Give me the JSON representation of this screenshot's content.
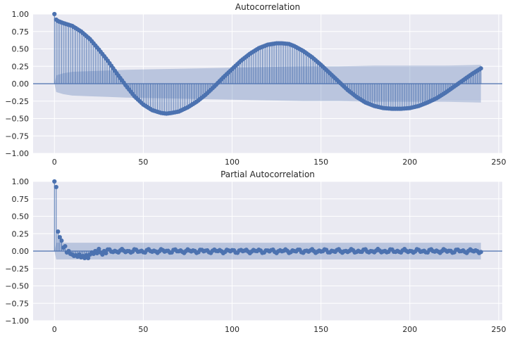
{
  "chart_data": [
    {
      "type": "stem",
      "title": "Autocorrelation",
      "xlabel": "",
      "ylabel": "",
      "xlim": [
        -12,
        252
      ],
      "ylim": [
        -1.0,
        1.0
      ],
      "xticks": [
        0,
        50,
        100,
        150,
        200,
        250
      ],
      "xtick_labels": [
        "0",
        "50",
        "100",
        "150",
        "200",
        "250"
      ],
      "yticks": [
        1.0,
        0.75,
        0.5,
        0.25,
        0.0,
        -0.25,
        -0.5,
        -0.75,
        -1.0
      ],
      "ytick_labels": [
        "1.00",
        "0.75",
        "0.50",
        "0.25",
        "0.00",
        "−0.25",
        "−0.50",
        "−0.75",
        "−1.00"
      ],
      "grid": true,
      "confidence_band": {
        "x": [
          0,
          1,
          5,
          10,
          20,
          30,
          40,
          60,
          80,
          100,
          120,
          140,
          160,
          180,
          200,
          220,
          240
        ],
        "upper": [
          0.0,
          0.12,
          0.15,
          0.17,
          0.18,
          0.19,
          0.2,
          0.21,
          0.22,
          0.23,
          0.24,
          0.25,
          0.25,
          0.26,
          0.26,
          0.26,
          0.27
        ],
        "lower": [
          0.0,
          -0.12,
          -0.15,
          -0.17,
          -0.18,
          -0.19,
          -0.2,
          -0.21,
          -0.22,
          -0.23,
          -0.24,
          -0.25,
          -0.25,
          -0.26,
          -0.26,
          -0.26,
          -0.27
        ]
      },
      "lag_max": 240,
      "knots": {
        "x": [
          0,
          1,
          2,
          5,
          10,
          15,
          20,
          25,
          30,
          35,
          40,
          45,
          50,
          55,
          60,
          63,
          66,
          70,
          75,
          80,
          85,
          90,
          95,
          100,
          105,
          110,
          115,
          120,
          125,
          128,
          132,
          135,
          140,
          145,
          150,
          155,
          160,
          165,
          170,
          175,
          180,
          185,
          190,
          195,
          200,
          205,
          210,
          215,
          220,
          225,
          230,
          235,
          240
        ],
        "y": [
          1.0,
          0.92,
          0.9,
          0.87,
          0.83,
          0.75,
          0.64,
          0.49,
          0.33,
          0.15,
          -0.02,
          -0.18,
          -0.3,
          -0.38,
          -0.42,
          -0.43,
          -0.42,
          -0.4,
          -0.34,
          -0.26,
          -0.16,
          -0.04,
          0.09,
          0.21,
          0.33,
          0.43,
          0.51,
          0.56,
          0.58,
          0.58,
          0.57,
          0.54,
          0.47,
          0.38,
          0.27,
          0.15,
          0.03,
          -0.09,
          -0.19,
          -0.27,
          -0.32,
          -0.35,
          -0.36,
          -0.36,
          -0.35,
          -0.32,
          -0.27,
          -0.21,
          -0.13,
          -0.04,
          0.05,
          0.14,
          0.22
        ]
      }
    },
    {
      "type": "stem",
      "title": "Partial Autocorrelation",
      "xlabel": "",
      "ylabel": "",
      "xlim": [
        -12,
        252
      ],
      "ylim": [
        -1.0,
        1.0
      ],
      "xticks": [
        0,
        50,
        100,
        150,
        200,
        250
      ],
      "xtick_labels": [
        "0",
        "50",
        "100",
        "150",
        "200",
        "250"
      ],
      "yticks": [
        1.0,
        0.75,
        0.5,
        0.25,
        0.0,
        -0.25,
        -0.5,
        -0.75,
        -1.0
      ],
      "ytick_labels": [
        "1.00",
        "0.75",
        "0.50",
        "0.25",
        "0.00",
        "−0.25",
        "−0.50",
        "−0.75",
        "−1.00"
      ],
      "grid": true,
      "confidence_band": {
        "x": [
          0,
          1,
          240
        ],
        "upper": [
          0.0,
          0.12,
          0.12
        ],
        "lower": [
          0.0,
          -0.12,
          -0.12
        ]
      },
      "lag_max": 240,
      "points": [
        [
          0,
          1.0
        ],
        [
          1,
          0.92
        ],
        [
          2,
          0.28
        ],
        [
          3,
          0.2
        ],
        [
          4,
          0.15
        ],
        [
          5,
          0.05
        ],
        [
          6,
          0.07
        ],
        [
          7,
          -0.02
        ],
        [
          8,
          0.0
        ],
        [
          9,
          -0.04
        ],
        [
          10,
          -0.05
        ],
        [
          11,
          -0.07
        ],
        [
          12,
          -0.06
        ],
        [
          13,
          -0.08
        ],
        [
          14,
          -0.05
        ],
        [
          15,
          -0.09
        ],
        [
          16,
          -0.07
        ],
        [
          17,
          -0.1
        ],
        [
          18,
          -0.06
        ],
        [
          19,
          -0.1
        ],
        [
          20,
          -0.05
        ],
        [
          21,
          -0.02
        ],
        [
          22,
          -0.04
        ],
        [
          23,
          0.0
        ],
        [
          24,
          -0.03
        ],
        [
          25,
          0.03
        ],
        [
          26,
          -0.02
        ],
        [
          27,
          -0.05
        ],
        [
          28,
          0.0
        ],
        [
          29,
          -0.03
        ]
      ],
      "tail_amplitude": 0.03
    }
  ]
}
